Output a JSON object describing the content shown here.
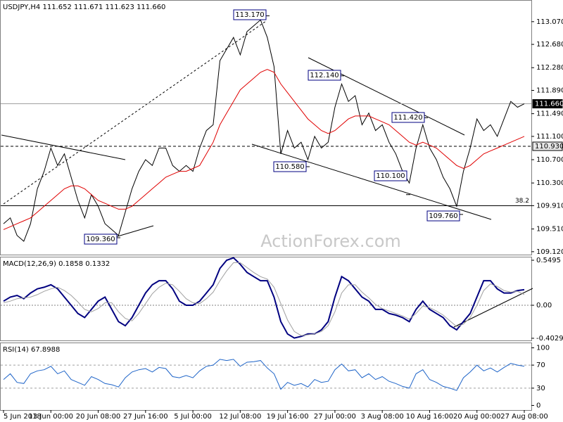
{
  "chart_data": [
    {
      "type": "line",
      "title": "USDJPY,H4  111.652 111.671 111.623 111.660",
      "ylim": [
        109.07,
        113.43
      ],
      "yticks": [
        {
          "value": 109.12,
          "label": "109.120"
        },
        {
          "value": 109.51,
          "label": "109.510"
        },
        {
          "value": 109.91,
          "label": "109.910"
        },
        {
          "value": 110.3,
          "label": "110.300"
        },
        {
          "value": 110.7,
          "label": "110.700"
        },
        {
          "value": 111.1,
          "label": "111.100"
        },
        {
          "value": 111.49,
          "label": "111.490"
        },
        {
          "value": 111.89,
          "label": "111.890"
        },
        {
          "value": 112.28,
          "label": "112.280"
        },
        {
          "value": 112.68,
          "label": "112.680"
        },
        {
          "value": 113.07,
          "label": "113.070"
        }
      ],
      "series": [
        {
          "color": "#000000",
          "values": [
            109.6,
            109.7,
            109.4,
            109.3,
            109.6,
            110.2,
            110.5,
            110.9,
            110.6,
            110.8,
            110.4,
            110.0,
            109.7,
            110.1,
            109.9,
            109.6,
            109.5,
            109.4,
            109.8,
            110.2,
            110.5,
            110.7,
            110.6,
            110.9,
            110.9,
            110.6,
            110.5,
            110.6,
            110.5,
            110.9,
            111.2,
            111.3,
            112.4,
            112.6,
            112.8,
            112.5,
            112.9,
            113.0,
            113.1,
            112.8,
            112.3,
            110.8,
            111.2,
            110.9,
            111.0,
            110.7,
            111.1,
            110.9,
            111.0,
            111.6,
            112.0,
            111.7,
            111.8,
            111.3,
            111.5,
            111.2,
            111.3,
            111.0,
            110.8,
            110.5,
            110.3,
            110.9,
            111.3,
            110.9,
            110.7,
            110.4,
            110.2,
            109.9,
            110.5,
            110.9,
            111.4,
            111.2,
            111.3,
            111.1,
            111.4,
            111.7,
            111.6,
            111.66
          ]
        },
        {
          "color": "#e00000",
          "values": [
            109.5,
            109.55,
            109.6,
            109.65,
            109.7,
            109.8,
            109.9,
            110.0,
            110.1,
            110.2,
            110.25,
            110.25,
            110.2,
            110.1,
            110.0,
            109.95,
            109.9,
            109.85,
            109.85,
            109.9,
            110.0,
            110.1,
            110.2,
            110.3,
            110.4,
            110.45,
            110.5,
            110.5,
            110.55,
            110.6,
            110.8,
            111.0,
            111.3,
            111.5,
            111.7,
            111.9,
            112.0,
            112.1,
            112.2,
            112.25,
            112.2,
            112.0,
            111.85,
            111.7,
            111.55,
            111.4,
            111.3,
            111.2,
            111.15,
            111.2,
            111.3,
            111.4,
            111.45,
            111.45,
            111.45,
            111.4,
            111.35,
            111.3,
            111.2,
            111.1,
            111.0,
            110.95,
            111.0,
            110.95,
            110.9,
            110.8,
            110.7,
            110.6,
            110.55,
            110.6,
            110.7,
            110.8,
            110.85,
            110.9,
            110.95,
            111.0,
            111.05,
            111.1
          ]
        }
      ],
      "levels": [
        {
          "value": 111.66,
          "label": "111.660"
        },
        {
          "value": 110.93,
          "label": "110.930"
        },
        {
          "value": 109.91,
          "label": "38.2"
        }
      ],
      "annotations": [
        {
          "value": 113.17,
          "label": "113.170"
        },
        {
          "value": 112.14,
          "label": "112.140"
        },
        {
          "value": 111.42,
          "label": "111.420"
        },
        {
          "value": 110.58,
          "label": "110.580"
        },
        {
          "value": 110.1,
          "label": "110.100"
        },
        {
          "value": 109.76,
          "label": "109.760"
        },
        {
          "value": 109.36,
          "label": "109.360"
        }
      ],
      "watermark": "ActionForex.com"
    },
    {
      "type": "line",
      "title": "MACD(12,26,9) 0.1858 0.1332",
      "ylim": [
        -0.429,
        0.584
      ],
      "yticks": [
        0.5495,
        {
          "value": 0,
          "label": "0.00"
        },
        -0.4029
      ],
      "series": [
        {
          "color": "#000080",
          "values": [
            0.05,
            0.1,
            0.12,
            0.08,
            0.15,
            0.2,
            0.22,
            0.25,
            0.2,
            0.1,
            0.0,
            -0.1,
            -0.15,
            -0.05,
            0.05,
            0.1,
            -0.05,
            -0.2,
            -0.25,
            -0.15,
            0.0,
            0.15,
            0.25,
            0.3,
            0.3,
            0.2,
            0.05,
            0.0,
            0.0,
            0.05,
            0.15,
            0.25,
            0.45,
            0.55,
            0.58,
            0.5,
            0.4,
            0.35,
            0.3,
            0.3,
            0.1,
            -0.2,
            -0.35,
            -0.4,
            -0.38,
            -0.35,
            -0.35,
            -0.3,
            -0.2,
            0.1,
            0.35,
            0.3,
            0.2,
            0.1,
            0.05,
            -0.05,
            -0.05,
            -0.1,
            -0.12,
            -0.15,
            -0.2,
            -0.05,
            0.05,
            -0.05,
            -0.1,
            -0.15,
            -0.25,
            -0.3,
            -0.2,
            -0.1,
            0.1,
            0.3,
            0.3,
            0.2,
            0.15,
            0.15,
            0.18,
            0.19
          ]
        },
        {
          "color": "#a0a0a0",
          "values": [
            0.03,
            0.05,
            0.08,
            0.09,
            0.1,
            0.13,
            0.17,
            0.2,
            0.22,
            0.18,
            0.12,
            0.04,
            -0.05,
            -0.08,
            -0.04,
            0.03,
            0.03,
            -0.08,
            -0.16,
            -0.19,
            -0.1,
            0.02,
            0.14,
            0.22,
            0.27,
            0.25,
            0.17,
            0.08,
            0.03,
            0.02,
            0.08,
            0.16,
            0.3,
            0.42,
            0.52,
            0.52,
            0.46,
            0.4,
            0.35,
            0.32,
            0.22,
            0.02,
            -0.18,
            -0.32,
            -0.37,
            -0.36,
            -0.35,
            -0.32,
            -0.25,
            -0.08,
            0.15,
            0.25,
            0.25,
            0.16,
            0.09,
            0.01,
            -0.04,
            -0.07,
            -0.1,
            -0.13,
            -0.17,
            -0.1,
            -0.01,
            -0.03,
            -0.07,
            -0.12,
            -0.19,
            -0.26,
            -0.23,
            -0.15,
            0.0,
            0.18,
            0.26,
            0.23,
            0.18,
            0.16,
            0.17,
            0.13
          ]
        }
      ]
    },
    {
      "type": "line",
      "title": "RSI(14) 67.8988",
      "ylim": [
        -8,
        108
      ],
      "yticks": [
        100,
        70,
        30,
        0
      ],
      "series": [
        {
          "color": "#1e64c8",
          "values": [
            45,
            55,
            40,
            38,
            55,
            60,
            62,
            68,
            55,
            60,
            45,
            40,
            35,
            50,
            45,
            38,
            36,
            32,
            48,
            58,
            62,
            64,
            58,
            66,
            64,
            50,
            48,
            52,
            48,
            60,
            68,
            70,
            80,
            78,
            80,
            68,
            75,
            76,
            78,
            65,
            55,
            28,
            40,
            35,
            38,
            32,
            45,
            40,
            42,
            62,
            72,
            60,
            62,
            48,
            55,
            45,
            50,
            42,
            38,
            33,
            30,
            55,
            62,
            45,
            40,
            33,
            30,
            26,
            48,
            58,
            70,
            60,
            65,
            58,
            66,
            73,
            70,
            67.9
          ]
        }
      ],
      "categories": [
        "5 Jun 2018",
        null,
        null,
        null,
        null,
        null,
        null,
        "13 Jun 00:00",
        null,
        null,
        null,
        null,
        null,
        null,
        "20 Jun 08:00",
        null,
        null,
        null,
        null,
        null,
        null,
        "27 Jun 16:00",
        null,
        null,
        null,
        null,
        null,
        null,
        "5 Jul 00:00",
        null,
        null,
        null,
        null,
        null,
        null,
        "12 Jul 08:00",
        null,
        null,
        null,
        null,
        null,
        null,
        "19 Jul 16:00",
        null,
        null,
        null,
        null,
        null,
        null,
        "27 Jul 00:00",
        null,
        null,
        null,
        null,
        null,
        null,
        "3 Aug 08:00",
        null,
        null,
        null,
        null,
        null,
        null,
        "10 Aug 16:00",
        null,
        null,
        null,
        null,
        null,
        null,
        "20 Aug 00:00",
        null,
        null,
        null,
        null,
        null,
        null,
        "27 Aug 08:00"
      ]
    }
  ]
}
